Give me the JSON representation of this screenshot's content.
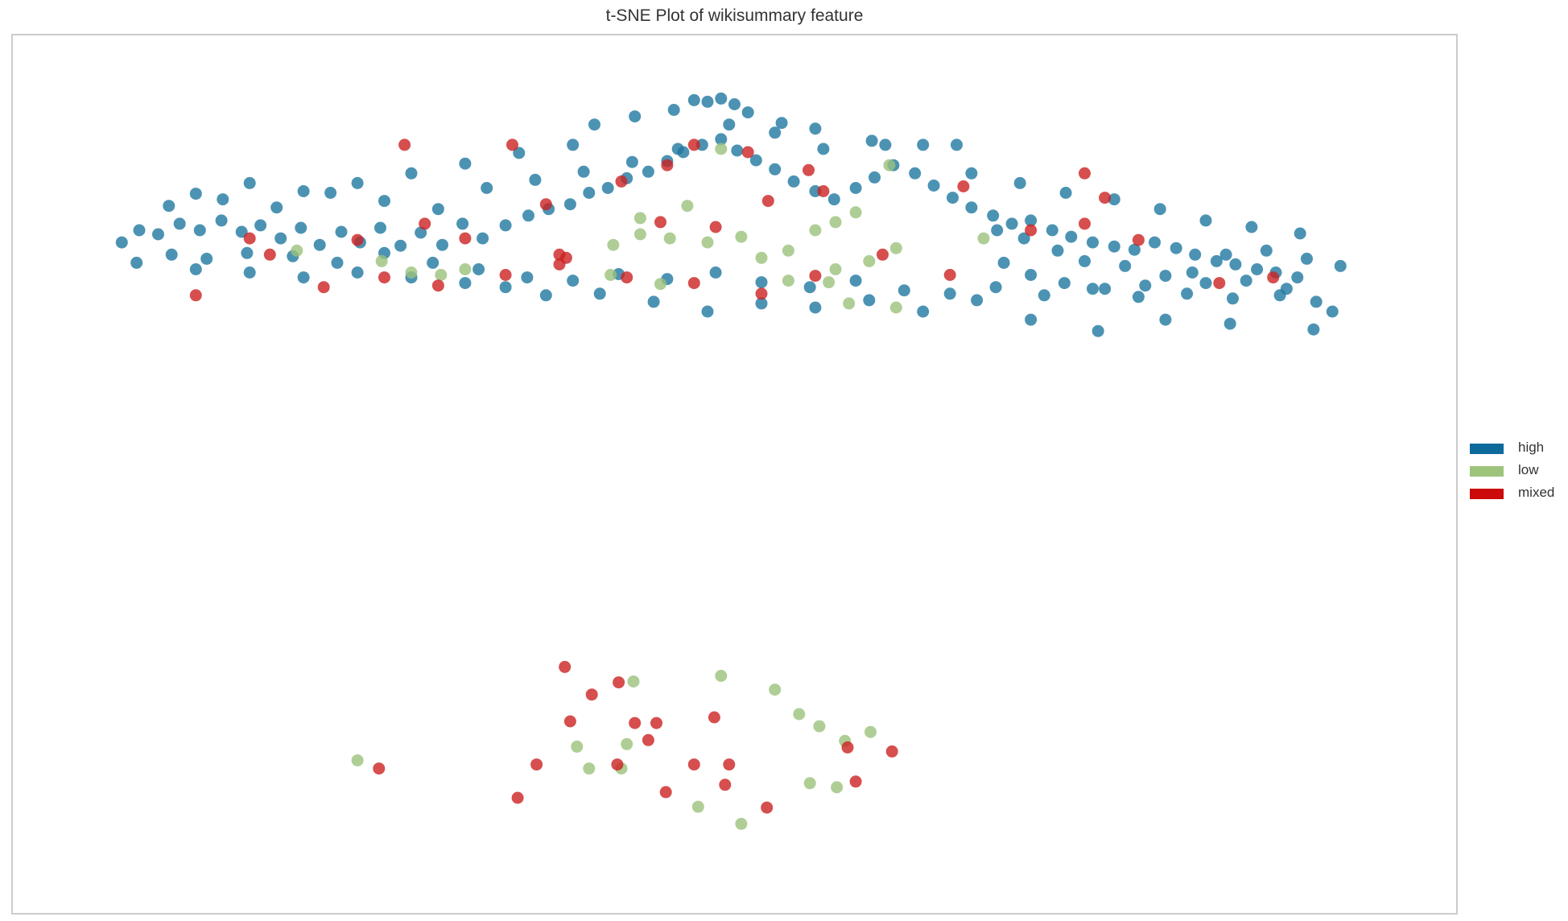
{
  "chart_data": {
    "type": "scatter",
    "title": "t-SNE Plot of wikisummary feature",
    "xlabel": "",
    "ylabel": "",
    "grid": false,
    "xlim": [
      0,
      1000
    ],
    "ylim": [
      0,
      1000
    ],
    "legend_position": "right",
    "series": [
      {
        "name": "high",
        "color": "#1f78a0",
        "points": [
          {
            "x": 45,
            "y": 785
          },
          {
            "x": 58,
            "y": 800
          },
          {
            "x": 72,
            "y": 795
          },
          {
            "x": 88,
            "y": 808
          },
          {
            "x": 103,
            "y": 800
          },
          {
            "x": 119,
            "y": 812
          },
          {
            "x": 134,
            "y": 798
          },
          {
            "x": 148,
            "y": 806
          },
          {
            "x": 163,
            "y": 790
          },
          {
            "x": 178,
            "y": 803
          },
          {
            "x": 192,
            "y": 782
          },
          {
            "x": 208,
            "y": 798
          },
          {
            "x": 222,
            "y": 785
          },
          {
            "x": 237,
            "y": 803
          },
          {
            "x": 252,
            "y": 781
          },
          {
            "x": 267,
            "y": 797
          },
          {
            "x": 283,
            "y": 782
          },
          {
            "x": 298,
            "y": 808
          },
          {
            "x": 313,
            "y": 790
          },
          {
            "x": 330,
            "y": 806
          },
          {
            "x": 347,
            "y": 818
          },
          {
            "x": 362,
            "y": 826
          },
          {
            "x": 378,
            "y": 832
          },
          {
            "x": 392,
            "y": 846
          },
          {
            "x": 406,
            "y": 852
          },
          {
            "x": 420,
            "y": 864
          },
          {
            "x": 436,
            "y": 872
          },
          {
            "x": 450,
            "y": 885
          },
          {
            "x": 462,
            "y": 896
          },
          {
            "x": 476,
            "y": 905
          },
          {
            "x": 490,
            "y": 912
          },
          {
            "x": 502,
            "y": 898
          },
          {
            "x": 516,
            "y": 886
          },
          {
            "x": 530,
            "y": 875
          },
          {
            "x": 544,
            "y": 860
          },
          {
            "x": 560,
            "y": 848
          },
          {
            "x": 574,
            "y": 838
          },
          {
            "x": 590,
            "y": 852
          },
          {
            "x": 604,
            "y": 865
          },
          {
            "x": 618,
            "y": 880
          },
          {
            "x": 634,
            "y": 870
          },
          {
            "x": 648,
            "y": 855
          },
          {
            "x": 662,
            "y": 840
          },
          {
            "x": 676,
            "y": 828
          },
          {
            "x": 692,
            "y": 818
          },
          {
            "x": 706,
            "y": 808
          },
          {
            "x": 720,
            "y": 812
          },
          {
            "x": 736,
            "y": 800
          },
          {
            "x": 750,
            "y": 792
          },
          {
            "x": 766,
            "y": 785
          },
          {
            "x": 782,
            "y": 780
          },
          {
            "x": 797,
            "y": 776
          },
          {
            "x": 812,
            "y": 785
          },
          {
            "x": 828,
            "y": 778
          },
          {
            "x": 842,
            "y": 770
          },
          {
            "x": 858,
            "y": 762
          },
          {
            "x": 872,
            "y": 758
          },
          {
            "x": 888,
            "y": 752
          },
          {
            "x": 902,
            "y": 748
          },
          {
            "x": 918,
            "y": 742
          },
          {
            "x": 56,
            "y": 760
          },
          {
            "x": 82,
            "y": 770
          },
          {
            "x": 108,
            "y": 765
          },
          {
            "x": 138,
            "y": 772
          },
          {
            "x": 172,
            "y": 768
          },
          {
            "x": 205,
            "y": 760
          },
          {
            "x": 240,
            "y": 772
          },
          {
            "x": 276,
            "y": 760
          },
          {
            "x": 310,
            "y": 752
          },
          {
            "x": 346,
            "y": 742
          },
          {
            "x": 380,
            "y": 738
          },
          {
            "x": 414,
            "y": 746
          },
          {
            "x": 450,
            "y": 740
          },
          {
            "x": 486,
            "y": 748
          },
          {
            "x": 520,
            "y": 736
          },
          {
            "x": 556,
            "y": 730
          },
          {
            "x": 590,
            "y": 738
          },
          {
            "x": 626,
            "y": 726
          },
          {
            "x": 660,
            "y": 722
          },
          {
            "x": 694,
            "y": 730
          },
          {
            "x": 730,
            "y": 720
          },
          {
            "x": 766,
            "y": 728
          },
          {
            "x": 800,
            "y": 718
          },
          {
            "x": 836,
            "y": 722
          },
          {
            "x": 870,
            "y": 716
          },
          {
            "x": 905,
            "y": 720
          },
          {
            "x": 932,
            "y": 712
          },
          {
            "x": 80,
            "y": 830
          },
          {
            "x": 120,
            "y": 838
          },
          {
            "x": 160,
            "y": 828
          },
          {
            "x": 200,
            "y": 846
          },
          {
            "x": 240,
            "y": 836
          },
          {
            "x": 280,
            "y": 826
          },
          {
            "x": 316,
            "y": 852
          },
          {
            "x": 352,
            "y": 862
          },
          {
            "x": 388,
            "y": 872
          },
          {
            "x": 424,
            "y": 884
          },
          {
            "x": 458,
            "y": 900
          },
          {
            "x": 496,
            "y": 930
          },
          {
            "x": 530,
            "y": 920
          },
          {
            "x": 566,
            "y": 900
          },
          {
            "x": 602,
            "y": 910
          },
          {
            "x": 640,
            "y": 905
          },
          {
            "x": 676,
            "y": 870
          },
          {
            "x": 712,
            "y": 858
          },
          {
            "x": 746,
            "y": 846
          },
          {
            "x": 782,
            "y": 838
          },
          {
            "x": 816,
            "y": 826
          },
          {
            "x": 850,
            "y": 812
          },
          {
            "x": 884,
            "y": 804
          },
          {
            "x": 920,
            "y": 796
          },
          {
            "x": 470,
            "y": 960
          },
          {
            "x": 480,
            "y": 958
          },
          {
            "x": 490,
            "y": 962
          },
          {
            "x": 500,
            "y": 955
          },
          {
            "x": 455,
            "y": 948
          },
          {
            "x": 510,
            "y": 945
          },
          {
            "x": 426,
            "y": 940
          },
          {
            "x": 535,
            "y": 932
          },
          {
            "x": 396,
            "y": 930
          },
          {
            "x": 560,
            "y": 925
          },
          {
            "x": 612,
            "y": 905
          },
          {
            "x": 665,
            "y": 905
          },
          {
            "x": 380,
            "y": 905
          },
          {
            "x": 340,
            "y": 895
          },
          {
            "x": 300,
            "y": 882
          },
          {
            "x": 260,
            "y": 870
          },
          {
            "x": 220,
            "y": 858
          },
          {
            "x": 180,
            "y": 848
          },
          {
            "x": 140,
            "y": 858
          },
          {
            "x": 100,
            "y": 845
          },
          {
            "x": 695,
            "y": 800
          },
          {
            "x": 715,
            "y": 790
          },
          {
            "x": 740,
            "y": 775
          },
          {
            "x": 760,
            "y": 762
          },
          {
            "x": 790,
            "y": 756
          },
          {
            "x": 820,
            "y": 744
          },
          {
            "x": 850,
            "y": 735
          },
          {
            "x": 880,
            "y": 738
          },
          {
            "x": 910,
            "y": 728
          },
          {
            "x": 700,
            "y": 760
          },
          {
            "x": 720,
            "y": 745
          },
          {
            "x": 745,
            "y": 735
          },
          {
            "x": 775,
            "y": 728
          },
          {
            "x": 805,
            "y": 732
          },
          {
            "x": 840,
            "y": 748
          },
          {
            "x": 865,
            "y": 770
          },
          {
            "x": 895,
            "y": 775
          },
          {
            "x": 925,
            "y": 765
          },
          {
            "x": 950,
            "y": 756
          },
          {
            "x": 944,
            "y": 700
          },
          {
            "x": 930,
            "y": 678
          },
          {
            "x": 868,
            "y": 685
          },
          {
            "x": 820,
            "y": 690
          },
          {
            "x": 770,
            "y": 676
          },
          {
            "x": 720,
            "y": 690
          },
          {
            "x": 680,
            "y": 714
          },
          {
            "x": 640,
            "y": 700
          },
          {
            "x": 600,
            "y": 714
          },
          {
            "x": 560,
            "y": 705
          },
          {
            "x": 520,
            "y": 710
          },
          {
            "x": 480,
            "y": 700
          },
          {
            "x": 440,
            "y": 712
          },
          {
            "x": 400,
            "y": 722
          },
          {
            "x": 360,
            "y": 720
          },
          {
            "x": 330,
            "y": 730
          },
          {
            "x": 300,
            "y": 735
          },
          {
            "x": 260,
            "y": 742
          },
          {
            "x": 220,
            "y": 748
          },
          {
            "x": 180,
            "y": 742
          },
          {
            "x": 140,
            "y": 748
          },
          {
            "x": 100,
            "y": 752
          }
        ]
      },
      {
        "name": "low",
        "color": "#9bc27c",
        "points": [
          {
            "x": 175,
            "y": 775
          },
          {
            "x": 238,
            "y": 762
          },
          {
            "x": 260,
            "y": 748
          },
          {
            "x": 282,
            "y": 745
          },
          {
            "x": 300,
            "y": 752
          },
          {
            "x": 410,
            "y": 782
          },
          {
            "x": 430,
            "y": 795
          },
          {
            "x": 452,
            "y": 790
          },
          {
            "x": 480,
            "y": 785
          },
          {
            "x": 505,
            "y": 792
          },
          {
            "x": 520,
            "y": 766
          },
          {
            "x": 540,
            "y": 775
          },
          {
            "x": 560,
            "y": 800
          },
          {
            "x": 575,
            "y": 810
          },
          {
            "x": 590,
            "y": 822
          },
          {
            "x": 615,
            "y": 880
          },
          {
            "x": 685,
            "y": 790
          },
          {
            "x": 540,
            "y": 738
          },
          {
            "x": 575,
            "y": 752
          },
          {
            "x": 600,
            "y": 762
          },
          {
            "x": 620,
            "y": 778
          },
          {
            "x": 430,
            "y": 815
          },
          {
            "x": 465,
            "y": 830
          },
          {
            "x": 490,
            "y": 900
          },
          {
            "x": 570,
            "y": 736
          },
          {
            "x": 585,
            "y": 710
          },
          {
            "x": 445,
            "y": 734
          },
          {
            "x": 408,
            "y": 745
          },
          {
            "x": 620,
            "y": 705
          },
          {
            "x": 220,
            "y": 148
          },
          {
            "x": 425,
            "y": 245
          },
          {
            "x": 490,
            "y": 252
          },
          {
            "x": 530,
            "y": 235
          },
          {
            "x": 548,
            "y": 205
          },
          {
            "x": 563,
            "y": 190
          },
          {
            "x": 582,
            "y": 172
          },
          {
            "x": 601,
            "y": 183
          },
          {
            "x": 416,
            "y": 138
          },
          {
            "x": 392,
            "y": 138
          },
          {
            "x": 383,
            "y": 165
          },
          {
            "x": 576,
            "y": 115
          },
          {
            "x": 556,
            "y": 120
          },
          {
            "x": 420,
            "y": 168
          },
          {
            "x": 473,
            "y": 91
          },
          {
            "x": 505,
            "y": 70
          }
        ]
      },
      {
        "name": "mixed",
        "color": "#cc2222",
        "points": [
          {
            "x": 100,
            "y": 720
          },
          {
            "x": 155,
            "y": 770
          },
          {
            "x": 195,
            "y": 730
          },
          {
            "x": 240,
            "y": 742
          },
          {
            "x": 280,
            "y": 732
          },
          {
            "x": 330,
            "y": 745
          },
          {
            "x": 370,
            "y": 758
          },
          {
            "x": 420,
            "y": 742
          },
          {
            "x": 470,
            "y": 735
          },
          {
            "x": 520,
            "y": 722
          },
          {
            "x": 560,
            "y": 744
          },
          {
            "x": 610,
            "y": 770
          },
          {
            "x": 660,
            "y": 745
          },
          {
            "x": 720,
            "y": 800
          },
          {
            "x": 760,
            "y": 808
          },
          {
            "x": 800,
            "y": 788
          },
          {
            "x": 860,
            "y": 735
          },
          {
            "x": 900,
            "y": 742
          },
          {
            "x": 140,
            "y": 790
          },
          {
            "x": 220,
            "y": 788
          },
          {
            "x": 360,
            "y": 832
          },
          {
            "x": 416,
            "y": 860
          },
          {
            "x": 450,
            "y": 880
          },
          {
            "x": 470,
            "y": 905
          },
          {
            "x": 510,
            "y": 896
          },
          {
            "x": 555,
            "y": 874
          },
          {
            "x": 566,
            "y": 848
          },
          {
            "x": 375,
            "y": 766
          },
          {
            "x": 300,
            "y": 790
          },
          {
            "x": 270,
            "y": 808
          },
          {
            "x": 445,
            "y": 810
          },
          {
            "x": 486,
            "y": 804
          },
          {
            "x": 525,
            "y": 836
          },
          {
            "x": 670,
            "y": 854
          },
          {
            "x": 760,
            "y": 870
          },
          {
            "x": 775,
            "y": 840
          },
          {
            "x": 255,
            "y": 905
          },
          {
            "x": 335,
            "y": 905
          },
          {
            "x": 370,
            "y": 770
          },
          {
            "x": 374,
            "y": 263
          },
          {
            "x": 394,
            "y": 229
          },
          {
            "x": 442,
            "y": 194
          },
          {
            "x": 493,
            "y": 118
          },
          {
            "x": 470,
            "y": 143
          },
          {
            "x": 413,
            "y": 143
          },
          {
            "x": 353,
            "y": 143
          },
          {
            "x": 339,
            "y": 102
          },
          {
            "x": 584,
            "y": 164
          },
          {
            "x": 617,
            "y": 159
          },
          {
            "x": 590,
            "y": 122
          },
          {
            "x": 236,
            "y": 138
          },
          {
            "x": 485,
            "y": 201
          },
          {
            "x": 426,
            "y": 194
          },
          {
            "x": 378,
            "y": 196
          },
          {
            "x": 414,
            "y": 244
          },
          {
            "x": 449,
            "y": 109
          },
          {
            "x": 524,
            "y": 90
          },
          {
            "x": 496,
            "y": 143
          },
          {
            "x": 436,
            "y": 173
          }
        ]
      }
    ]
  },
  "legend": [
    {
      "label": "high",
      "color": "#0e6a9b"
    },
    {
      "label": "low",
      "color": "#9ec47c"
    },
    {
      "label": "mixed",
      "color": "#cc0a0a"
    }
  ]
}
